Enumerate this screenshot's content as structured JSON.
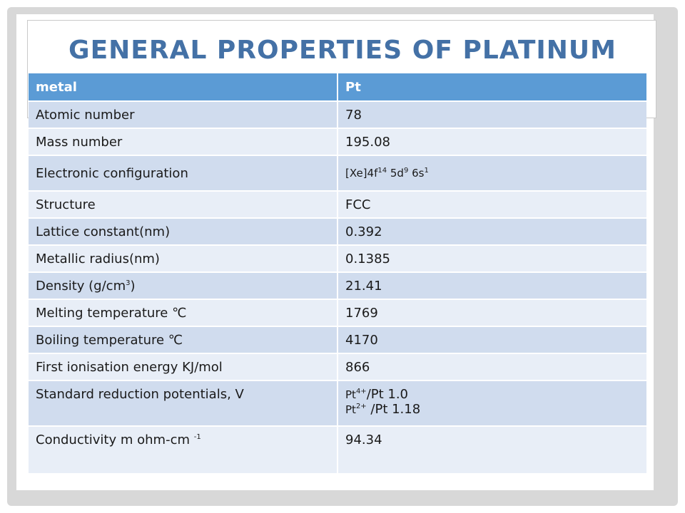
{
  "title": "GENERAL PROPERTIES OF PLATINUM",
  "table": {
    "headers": [
      "metal",
      "Pt"
    ],
    "rows": [
      {
        "property": "Atomic number",
        "value": "78"
      },
      {
        "property": "Mass number",
        "value": "195.08"
      },
      {
        "property": "Electronic configuration",
        "value_parts": [
          "[Xe]4f",
          "14",
          " 5d",
          "9",
          " 6s",
          "1"
        ]
      },
      {
        "property": "Structure",
        "value": "FCC"
      },
      {
        "property": "Lattice constant(nm)",
        "value": "0.392"
      },
      {
        "property": "Metallic radius(nm)",
        "value": "0.1385"
      },
      {
        "property_parts": [
          "Density (g/cm",
          "3",
          ")"
        ],
        "value": "21.41"
      },
      {
        "property": "Melting temperature ℃",
        "value": "1769"
      },
      {
        "property": "Boiling temperature  ℃",
        "value": "4170"
      },
      {
        "property": "First ionisation energy KJ/mol",
        "value": "866"
      },
      {
        "property": "Standard reduction potentials, V",
        "value_lines": [
          {
            "pre": "Pt",
            "sup": "4+",
            "post": "/Pt 1.0"
          },
          {
            "pre": "Pt",
            "sup": "2+",
            "post": " /Pt 1.18"
          }
        ]
      },
      {
        "property_parts": [
          "Conductivity m ohm-cm ",
          "-1",
          ""
        ],
        "value": "94.34"
      }
    ]
  },
  "colors": {
    "title": "#4471a6",
    "header_bg": "#5b9bd5",
    "row_dark": "#d0dcee",
    "row_light": "#e8eef7"
  }
}
